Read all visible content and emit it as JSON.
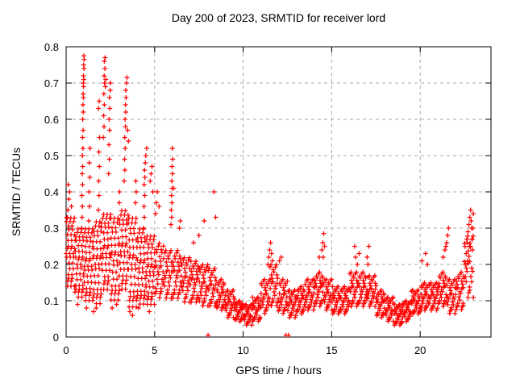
{
  "chart_data": {
    "type": "scatter",
    "title": "Day 200 of 2023, SRMTID for receiver lord",
    "xlabel": "GPS time / hours",
    "ylabel": "SRMTID / TECUs",
    "series_name": "SRMTID",
    "xlim": [
      0,
      24
    ],
    "ylim": [
      0,
      0.8
    ],
    "xticks": [
      0,
      5,
      10,
      15,
      20
    ],
    "xtick_labels": [
      "0",
      "5",
      "10",
      "15",
      "20"
    ],
    "yticks": [
      0,
      0.1,
      0.2,
      0.3,
      0.4,
      0.5,
      0.6,
      0.7,
      0.8
    ],
    "ytick_labels": [
      "0",
      "0.1",
      "0.2",
      "0.3",
      "0.4",
      "0.5",
      "0.6",
      "0.7",
      "0.8"
    ],
    "grid": {
      "show": true,
      "style": "dashed",
      "color": "#a8a8a8",
      "at_xticks": true,
      "at_yticks": true
    },
    "marker": {
      "shape": "plus",
      "size": 7,
      "color": "#ff0000"
    },
    "axis_color": "#000000",
    "background": "#ffffff",
    "legend": "none",
    "jitter": [
      0.5,
      0.83,
      0.21,
      0.68,
      0.05,
      0.94,
      0.37,
      0.6,
      0.12,
      0.76,
      0.45,
      0.29,
      0.88,
      0.16,
      0.57,
      0.99
    ],
    "cloud_segments": [
      [
        0.0,
        0.5,
        0.13,
        0.33,
        40
      ],
      [
        0.5,
        1.0,
        0.1,
        0.3,
        40
      ],
      [
        1.0,
        1.5,
        0.09,
        0.3,
        40
      ],
      [
        1.5,
        2.0,
        0.08,
        0.32,
        40
      ],
      [
        2.0,
        2.5,
        0.12,
        0.34,
        40
      ],
      [
        2.5,
        3.0,
        0.09,
        0.33,
        40
      ],
      [
        3.0,
        3.5,
        0.12,
        0.35,
        40
      ],
      [
        3.5,
        4.0,
        0.07,
        0.33,
        40
      ],
      [
        4.0,
        4.5,
        0.08,
        0.3,
        40
      ],
      [
        4.5,
        5.0,
        0.08,
        0.28,
        40
      ],
      [
        5.0,
        5.5,
        0.1,
        0.26,
        28
      ],
      [
        5.5,
        6.0,
        0.1,
        0.24,
        28
      ],
      [
        6.0,
        6.5,
        0.1,
        0.24,
        28
      ],
      [
        6.5,
        7.0,
        0.09,
        0.22,
        28
      ],
      [
        7.0,
        7.5,
        0.09,
        0.21,
        28
      ],
      [
        7.5,
        8.0,
        0.08,
        0.2,
        28
      ],
      [
        8.0,
        8.5,
        0.08,
        0.19,
        26
      ],
      [
        8.5,
        9.0,
        0.07,
        0.16,
        26
      ],
      [
        9.0,
        9.5,
        0.05,
        0.13,
        26
      ],
      [
        9.5,
        10.0,
        0.04,
        0.1,
        26
      ],
      [
        10.0,
        10.5,
        0.03,
        0.09,
        26
      ],
      [
        10.5,
        11.0,
        0.04,
        0.11,
        26
      ],
      [
        11.0,
        11.5,
        0.06,
        0.16,
        26
      ],
      [
        11.5,
        12.0,
        0.08,
        0.2,
        26
      ],
      [
        12.0,
        12.5,
        0.06,
        0.16,
        26
      ],
      [
        12.5,
        13.0,
        0.05,
        0.13,
        26
      ],
      [
        13.0,
        13.5,
        0.06,
        0.14,
        26
      ],
      [
        13.5,
        14.0,
        0.07,
        0.16,
        26
      ],
      [
        14.0,
        14.5,
        0.08,
        0.18,
        26
      ],
      [
        14.5,
        15.0,
        0.07,
        0.16,
        26
      ],
      [
        15.0,
        15.5,
        0.06,
        0.14,
        26
      ],
      [
        15.5,
        16.0,
        0.06,
        0.14,
        26
      ],
      [
        16.0,
        16.5,
        0.08,
        0.18,
        26
      ],
      [
        16.5,
        17.0,
        0.08,
        0.18,
        26
      ],
      [
        17.0,
        17.5,
        0.08,
        0.17,
        26
      ],
      [
        17.5,
        18.0,
        0.05,
        0.13,
        26
      ],
      [
        18.0,
        18.5,
        0.04,
        0.11,
        26
      ],
      [
        18.5,
        19.0,
        0.03,
        0.09,
        26
      ],
      [
        19.0,
        19.5,
        0.04,
        0.1,
        26
      ],
      [
        19.5,
        20.0,
        0.06,
        0.13,
        26
      ],
      [
        20.0,
        20.5,
        0.07,
        0.15,
        26
      ],
      [
        20.5,
        21.0,
        0.07,
        0.15,
        26
      ],
      [
        21.0,
        21.5,
        0.08,
        0.18,
        26
      ],
      [
        21.5,
        22.0,
        0.06,
        0.16,
        26
      ],
      [
        22.0,
        22.5,
        0.07,
        0.18,
        26
      ],
      [
        22.5,
        23.0,
        0.1,
        0.28,
        26
      ]
    ],
    "points": [
      [
        0.88,
        0.3
      ],
      [
        0.9,
        0.33
      ],
      [
        0.92,
        0.36
      ],
      [
        0.89,
        0.39
      ],
      [
        0.93,
        0.42
      ],
      [
        0.91,
        0.45
      ],
      [
        0.94,
        0.47
      ],
      [
        0.92,
        0.5
      ],
      [
        0.95,
        0.52
      ],
      [
        0.93,
        0.55
      ],
      [
        0.96,
        0.57
      ],
      [
        0.94,
        0.6
      ],
      [
        0.97,
        0.62
      ],
      [
        0.95,
        0.64
      ],
      [
        0.98,
        0.66
      ],
      [
        0.96,
        0.67
      ],
      [
        0.99,
        0.69
      ],
      [
        0.97,
        0.7
      ],
      [
        1.0,
        0.71
      ],
      [
        0.98,
        0.72
      ],
      [
        1.01,
        0.74
      ],
      [
        0.99,
        0.75
      ],
      [
        1.02,
        0.765
      ],
      [
        1.0,
        0.775
      ],
      [
        0.05,
        0.33
      ],
      [
        0.1,
        0.35
      ],
      [
        0.15,
        0.38
      ],
      [
        0.12,
        0.42
      ],
      [
        0.2,
        0.4
      ],
      [
        0.3,
        0.36
      ],
      [
        1.28,
        0.32
      ],
      [
        1.32,
        0.36
      ],
      [
        1.3,
        0.4
      ],
      [
        1.34,
        0.44
      ],
      [
        1.31,
        0.48
      ],
      [
        1.35,
        0.52
      ],
      [
        1.82,
        0.35
      ],
      [
        1.86,
        0.39
      ],
      [
        1.84,
        0.43
      ],
      [
        1.88,
        0.47
      ],
      [
        1.85,
        0.51
      ],
      [
        1.89,
        0.55
      ],
      [
        1.83,
        0.63
      ],
      [
        1.87,
        0.65
      ],
      [
        2.1,
        0.55
      ],
      [
        2.14,
        0.58
      ],
      [
        2.12,
        0.61
      ],
      [
        2.16,
        0.64
      ],
      [
        2.13,
        0.67
      ],
      [
        2.17,
        0.7
      ],
      [
        2.15,
        0.72
      ],
      [
        2.19,
        0.74
      ],
      [
        2.16,
        0.76
      ],
      [
        2.2,
        0.77
      ],
      [
        2.22,
        0.69
      ],
      [
        2.24,
        0.71
      ],
      [
        2.4,
        0.45
      ],
      [
        2.44,
        0.49
      ],
      [
        2.42,
        0.53
      ],
      [
        2.46,
        0.57
      ],
      [
        2.43,
        0.6
      ],
      [
        2.47,
        0.63
      ],
      [
        2.45,
        0.66
      ],
      [
        2.49,
        0.68
      ],
      [
        2.5,
        0.7
      ],
      [
        3.28,
        0.43
      ],
      [
        3.32,
        0.46
      ],
      [
        3.3,
        0.49
      ],
      [
        3.34,
        0.52
      ],
      [
        3.31,
        0.55
      ],
      [
        3.35,
        0.58
      ],
      [
        3.33,
        0.6
      ],
      [
        3.37,
        0.62
      ],
      [
        3.35,
        0.64
      ],
      [
        3.39,
        0.66
      ],
      [
        3.37,
        0.68
      ],
      [
        3.41,
        0.7
      ],
      [
        3.44,
        0.715
      ],
      [
        3.48,
        0.57
      ],
      [
        3.52,
        0.54
      ],
      [
        3.0,
        0.37
      ],
      [
        3.02,
        0.4
      ],
      [
        3.92,
        0.37
      ],
      [
        3.96,
        0.4
      ],
      [
        3.94,
        0.43
      ],
      [
        4.38,
        0.3
      ],
      [
        4.42,
        0.33
      ],
      [
        4.4,
        0.36
      ],
      [
        4.44,
        0.39
      ],
      [
        4.41,
        0.42
      ],
      [
        4.45,
        0.44
      ],
      [
        4.43,
        0.46
      ],
      [
        4.47,
        0.48
      ],
      [
        4.5,
        0.5
      ],
      [
        4.55,
        0.52
      ],
      [
        4.75,
        0.43
      ],
      [
        4.8,
        0.45
      ],
      [
        4.85,
        0.47
      ],
      [
        4.9,
        0.4
      ],
      [
        5.05,
        0.34
      ],
      [
        5.1,
        0.37
      ],
      [
        5.15,
        0.4
      ],
      [
        5.25,
        0.36
      ],
      [
        5.92,
        0.31
      ],
      [
        5.96,
        0.33
      ],
      [
        5.94,
        0.35
      ],
      [
        5.98,
        0.37
      ],
      [
        5.95,
        0.39
      ],
      [
        5.99,
        0.41
      ],
      [
        5.97,
        0.43
      ],
      [
        6.01,
        0.45
      ],
      [
        5.98,
        0.47
      ],
      [
        6.02,
        0.49
      ],
      [
        6.0,
        0.52
      ],
      [
        6.08,
        0.41
      ],
      [
        6.4,
        0.3
      ],
      [
        6.45,
        0.32
      ],
      [
        7.2,
        0.26
      ],
      [
        7.5,
        0.28
      ],
      [
        7.8,
        0.32
      ],
      [
        8.35,
        0.4
      ],
      [
        8.45,
        0.33
      ],
      [
        0.65,
        0.09
      ],
      [
        1.15,
        0.08
      ],
      [
        1.55,
        0.07
      ],
      [
        1.7,
        0.08
      ],
      [
        2.6,
        0.08
      ],
      [
        2.85,
        0.09
      ],
      [
        3.6,
        0.07
      ],
      [
        3.75,
        0.06
      ],
      [
        4.1,
        0.08
      ],
      [
        4.7,
        0.07
      ],
      [
        11.4,
        0.2
      ],
      [
        11.45,
        0.22
      ],
      [
        11.5,
        0.24
      ],
      [
        11.55,
        0.26
      ],
      [
        11.6,
        0.23
      ],
      [
        11.65,
        0.21
      ],
      [
        12.05,
        0.21
      ],
      [
        12.15,
        0.22
      ],
      [
        14.3,
        0.22
      ],
      [
        14.45,
        0.24
      ],
      [
        14.5,
        0.26
      ],
      [
        14.55,
        0.285
      ],
      [
        14.6,
        0.25
      ],
      [
        14.52,
        0.22
      ],
      [
        16.3,
        0.25
      ],
      [
        16.35,
        0.22
      ],
      [
        16.45,
        0.2
      ],
      [
        16.55,
        0.23
      ],
      [
        17.0,
        0.22
      ],
      [
        17.1,
        0.25
      ],
      [
        17.05,
        0.2
      ],
      [
        20.1,
        0.21
      ],
      [
        20.3,
        0.23
      ],
      [
        20.4,
        0.2
      ],
      [
        21.3,
        0.22
      ],
      [
        21.4,
        0.24
      ],
      [
        21.5,
        0.26
      ],
      [
        21.55,
        0.28
      ],
      [
        21.6,
        0.3
      ],
      [
        21.45,
        0.25
      ],
      [
        22.55,
        0.2
      ],
      [
        22.6,
        0.23
      ],
      [
        22.65,
        0.26
      ],
      [
        22.7,
        0.29
      ],
      [
        22.75,
        0.31
      ],
      [
        22.8,
        0.33
      ],
      [
        22.85,
        0.35
      ],
      [
        22.9,
        0.3
      ],
      [
        22.92,
        0.27
      ],
      [
        22.95,
        0.24
      ],
      [
        22.88,
        0.32
      ],
      [
        22.78,
        0.25
      ],
      [
        22.68,
        0.21
      ],
      [
        23.0,
        0.34
      ],
      [
        22.98,
        0.3
      ],
      [
        8.02,
        0.005
      ],
      [
        12.42,
        0.005
      ],
      [
        12.55,
        0.005
      ]
    ]
  }
}
